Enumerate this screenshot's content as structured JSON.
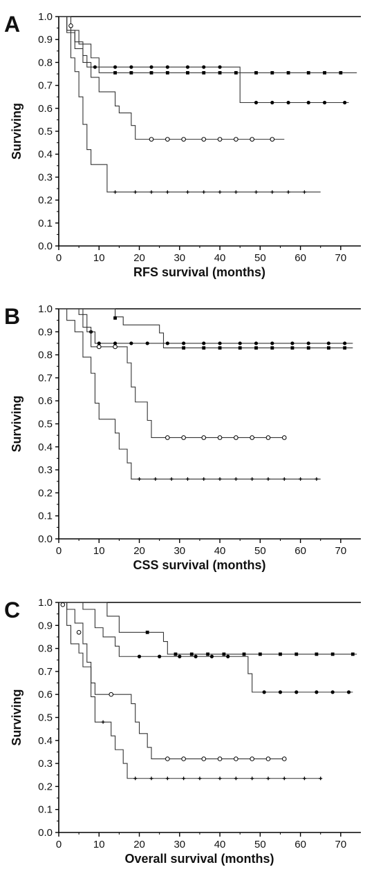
{
  "chart_data": [
    {
      "panel": "A",
      "type": "line",
      "step": true,
      "xlabel": "RFS survival (months)",
      "ylabel": "Surviving",
      "xlim": [
        0,
        75
      ],
      "ylim": [
        0,
        1.0
      ],
      "xticks": [
        0,
        10,
        20,
        30,
        40,
        50,
        60,
        70
      ],
      "yticks": [
        0.0,
        0.1,
        0.2,
        0.3,
        0.4,
        0.5,
        0.6,
        0.7,
        0.8,
        0.9,
        1.0
      ],
      "series": [
        {
          "marker": "filled-circle",
          "steps": [
            [
              0,
              1.0
            ],
            [
              2,
              0.94
            ],
            [
              4,
              0.89
            ],
            [
              6,
              0.83
            ],
            [
              7,
              0.78
            ],
            [
              45,
              0.625
            ],
            [
              72,
              0.625
            ]
          ],
          "censors": [
            [
              9,
              0.78
            ],
            [
              14,
              0.78
            ],
            [
              18,
              0.78
            ],
            [
              23,
              0.78
            ],
            [
              27,
              0.78
            ],
            [
              32,
              0.78
            ],
            [
              36,
              0.78
            ],
            [
              40,
              0.78
            ],
            [
              49,
              0.625
            ],
            [
              53,
              0.625
            ],
            [
              57,
              0.625
            ],
            [
              62,
              0.625
            ],
            [
              66,
              0.625
            ],
            [
              71,
              0.625
            ]
          ]
        },
        {
          "marker": "filled-square",
          "steps": [
            [
              0,
              1.0
            ],
            [
              3,
              0.94
            ],
            [
              5,
              0.88
            ],
            [
              8,
              0.82
            ],
            [
              10,
              0.755
            ],
            [
              74,
              0.755
            ]
          ],
          "censors": [
            [
              14,
              0.755
            ],
            [
              18,
              0.755
            ],
            [
              23,
              0.755
            ],
            [
              27,
              0.755
            ],
            [
              32,
              0.755
            ],
            [
              36,
              0.755
            ],
            [
              40,
              0.755
            ],
            [
              44,
              0.755
            ],
            [
              49,
              0.755
            ],
            [
              53,
              0.755
            ],
            [
              57,
              0.755
            ],
            [
              62,
              0.755
            ],
            [
              66,
              0.755
            ],
            [
              70,
              0.755
            ]
          ]
        },
        {
          "marker": "open-circle",
          "steps": [
            [
              0,
              1.0
            ],
            [
              2,
              0.93
            ],
            [
              4,
              0.86
            ],
            [
              6,
              0.8
            ],
            [
              8,
              0.735
            ],
            [
              10,
              0.672
            ],
            [
              14,
              0.61
            ],
            [
              15,
              0.58
            ],
            [
              18,
              0.525
            ],
            [
              19,
              0.465
            ],
            [
              56,
              0.465
            ]
          ],
          "censors": [
            [
              3,
              0.96
            ],
            [
              23,
              0.465
            ],
            [
              27,
              0.465
            ],
            [
              31,
              0.465
            ],
            [
              36,
              0.465
            ],
            [
              40,
              0.465
            ],
            [
              44,
              0.465
            ],
            [
              48,
              0.465
            ],
            [
              53,
              0.465
            ]
          ]
        },
        {
          "marker": "plus",
          "steps": [
            [
              0,
              1.0
            ],
            [
              2,
              0.94
            ],
            [
              3,
              0.82
            ],
            [
              4,
              0.76
            ],
            [
              5,
              0.65
            ],
            [
              6,
              0.53
            ],
            [
              7,
              0.42
            ],
            [
              8,
              0.355
            ],
            [
              12,
              0.235
            ],
            [
              65,
              0.235
            ]
          ],
          "censors": [
            [
              14,
              0.235
            ],
            [
              19,
              0.235
            ],
            [
              23,
              0.235
            ],
            [
              27,
              0.235
            ],
            [
              32,
              0.235
            ],
            [
              36,
              0.235
            ],
            [
              40,
              0.235
            ],
            [
              44,
              0.235
            ],
            [
              49,
              0.235
            ],
            [
              53,
              0.235
            ],
            [
              57,
              0.235
            ],
            [
              61,
              0.235
            ]
          ]
        }
      ]
    },
    {
      "panel": "B",
      "type": "line",
      "step": true,
      "xlabel": "CSS survival (months)",
      "ylabel": "Surviving",
      "xlim": [
        0,
        75
      ],
      "ylim": [
        0,
        1.0
      ],
      "xticks": [
        0,
        10,
        20,
        30,
        40,
        50,
        60,
        70
      ],
      "yticks": [
        0.0,
        0.1,
        0.2,
        0.3,
        0.4,
        0.5,
        0.6,
        0.7,
        0.8,
        0.9,
        1.0
      ],
      "series": [
        {
          "marker": "filled-circle",
          "steps": [
            [
              0,
              1.0
            ],
            [
              5,
              0.975
            ],
            [
              7,
              0.9
            ],
            [
              9,
              0.85
            ],
            [
              73,
              0.85
            ]
          ],
          "censors": [
            [
              8,
              0.9
            ],
            [
              10,
              0.85
            ],
            [
              14,
              0.85
            ],
            [
              18,
              0.85
            ],
            [
              22,
              0.85
            ],
            [
              27,
              0.85
            ],
            [
              31,
              0.85
            ],
            [
              36,
              0.85
            ],
            [
              40,
              0.85
            ],
            [
              45,
              0.85
            ],
            [
              49,
              0.85
            ],
            [
              53,
              0.85
            ],
            [
              58,
              0.85
            ],
            [
              62,
              0.85
            ],
            [
              67,
              0.85
            ],
            [
              71,
              0.85
            ]
          ]
        },
        {
          "marker": "filled-square",
          "steps": [
            [
              0,
              1.0
            ],
            [
              14,
              0.965
            ],
            [
              16,
              0.93
            ],
            [
              25,
              0.895
            ],
            [
              26,
              0.83
            ],
            [
              73,
              0.83
            ]
          ],
          "censors": [
            [
              14,
              0.96
            ],
            [
              31,
              0.83
            ],
            [
              36,
              0.83
            ],
            [
              40,
              0.83
            ],
            [
              45,
              0.83
            ],
            [
              49,
              0.83
            ],
            [
              53,
              0.83
            ],
            [
              58,
              0.83
            ],
            [
              62,
              0.83
            ],
            [
              67,
              0.83
            ],
            [
              71,
              0.83
            ]
          ]
        },
        {
          "marker": "open-circle",
          "steps": [
            [
              0,
              1.0
            ],
            [
              6,
              0.92
            ],
            [
              8,
              0.835
            ],
            [
              17,
              0.765
            ],
            [
              18,
              0.66
            ],
            [
              19,
              0.595
            ],
            [
              22,
              0.515
            ],
            [
              23,
              0.44
            ],
            [
              56,
              0.44
            ]
          ],
          "censors": [
            [
              10,
              0.835
            ],
            [
              14,
              0.835
            ],
            [
              27,
              0.44
            ],
            [
              31,
              0.44
            ],
            [
              36,
              0.44
            ],
            [
              40,
              0.44
            ],
            [
              44,
              0.44
            ],
            [
              48,
              0.44
            ],
            [
              52,
              0.44
            ],
            [
              56,
              0.44
            ]
          ]
        },
        {
          "marker": "plus",
          "steps": [
            [
              0,
              1.0
            ],
            [
              2,
              0.95
            ],
            [
              4,
              0.9
            ],
            [
              6,
              0.79
            ],
            [
              8,
              0.72
            ],
            [
              9,
              0.59
            ],
            [
              10,
              0.52
            ],
            [
              14,
              0.46
            ],
            [
              15,
              0.39
            ],
            [
              17,
              0.33
            ],
            [
              18,
              0.26
            ],
            [
              65,
              0.26
            ]
          ],
          "censors": [
            [
              20,
              0.26
            ],
            [
              24,
              0.26
            ],
            [
              28,
              0.26
            ],
            [
              32,
              0.26
            ],
            [
              36,
              0.26
            ],
            [
              40,
              0.26
            ],
            [
              44,
              0.26
            ],
            [
              48,
              0.26
            ],
            [
              52,
              0.26
            ],
            [
              56,
              0.26
            ],
            [
              60,
              0.26
            ],
            [
              64,
              0.26
            ]
          ]
        }
      ]
    },
    {
      "panel": "C",
      "type": "line",
      "step": true,
      "xlabel": "Overall survival (months)",
      "ylabel": "Surviving",
      "xlim": [
        0,
        75
      ],
      "ylim": [
        0,
        1.0
      ],
      "xticks": [
        0,
        10,
        20,
        30,
        40,
        50,
        60,
        70
      ],
      "yticks": [
        0.0,
        0.1,
        0.2,
        0.3,
        0.4,
        0.5,
        0.6,
        0.7,
        0.8,
        0.9,
        1.0
      ],
      "series": [
        {
          "marker": "filled-circle",
          "steps": [
            [
              0,
              1.0
            ],
            [
              6,
              0.97
            ],
            [
              9,
              0.89
            ],
            [
              11,
              0.85
            ],
            [
              14,
              0.81
            ],
            [
              15,
              0.765
            ],
            [
              47,
              0.69
            ],
            [
              48,
              0.61
            ],
            [
              73,
              0.61
            ]
          ],
          "censors": [
            [
              20,
              0.765
            ],
            [
              25,
              0.765
            ],
            [
              30,
              0.765
            ],
            [
              34,
              0.765
            ],
            [
              38,
              0.765
            ],
            [
              42,
              0.765
            ],
            [
              51,
              0.61
            ],
            [
              55,
              0.61
            ],
            [
              59,
              0.61
            ],
            [
              64,
              0.61
            ],
            [
              68,
              0.61
            ],
            [
              72,
              0.61
            ]
          ]
        },
        {
          "marker": "filled-square",
          "steps": [
            [
              0,
              1.0
            ],
            [
              12,
              0.94
            ],
            [
              15,
              0.87
            ],
            [
              26,
              0.83
            ],
            [
              27,
              0.775
            ],
            [
              74,
              0.775
            ]
          ],
          "censors": [
            [
              22,
              0.87
            ],
            [
              29,
              0.775
            ],
            [
              33,
              0.775
            ],
            [
              37,
              0.775
            ],
            [
              41,
              0.775
            ],
            [
              46,
              0.775
            ],
            [
              50,
              0.775
            ],
            [
              55,
              0.775
            ],
            [
              59,
              0.775
            ],
            [
              64,
              0.775
            ],
            [
              68,
              0.775
            ],
            [
              73,
              0.775
            ]
          ]
        },
        {
          "marker": "open-circle",
          "steps": [
            [
              0,
              1.0
            ],
            [
              2,
              0.97
            ],
            [
              4,
              0.91
            ],
            [
              6,
              0.82
            ],
            [
              7,
              0.74
            ],
            [
              8,
              0.65
            ],
            [
              9,
              0.6
            ],
            [
              18,
              0.56
            ],
            [
              19,
              0.48
            ],
            [
              20,
              0.43
            ],
            [
              22,
              0.37
            ],
            [
              23,
              0.32
            ],
            [
              56,
              0.32
            ]
          ],
          "censors": [
            [
              1,
              0.99
            ],
            [
              5,
              0.87
            ],
            [
              13,
              0.6
            ],
            [
              27,
              0.32
            ],
            [
              31,
              0.32
            ],
            [
              36,
              0.32
            ],
            [
              40,
              0.32
            ],
            [
              44,
              0.32
            ],
            [
              48,
              0.32
            ],
            [
              52,
              0.32
            ],
            [
              56,
              0.32
            ]
          ]
        },
        {
          "marker": "plus",
          "steps": [
            [
              0,
              1.0
            ],
            [
              2,
              0.9
            ],
            [
              3,
              0.82
            ],
            [
              5,
              0.78
            ],
            [
              6,
              0.72
            ],
            [
              8,
              0.59
            ],
            [
              9,
              0.48
            ],
            [
              13,
              0.42
            ],
            [
              14,
              0.36
            ],
            [
              16,
              0.3
            ],
            [
              17,
              0.235
            ],
            [
              65,
              0.235
            ]
          ],
          "censors": [
            [
              11,
              0.48
            ],
            [
              19,
              0.235
            ],
            [
              23,
              0.235
            ],
            [
              27,
              0.235
            ],
            [
              31,
              0.235
            ],
            [
              35,
              0.235
            ],
            [
              40,
              0.235
            ],
            [
              44,
              0.235
            ],
            [
              48,
              0.235
            ],
            [
              52,
              0.235
            ],
            [
              56,
              0.235
            ],
            [
              61,
              0.235
            ],
            [
              65,
              0.235
            ]
          ]
        }
      ]
    }
  ]
}
